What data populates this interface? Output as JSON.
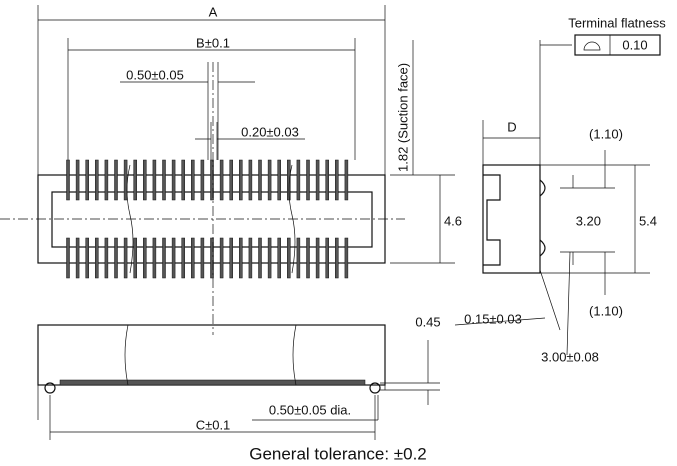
{
  "dimensions": {
    "a": "A",
    "b": "B±0.1",
    "pitch": "0.50±0.05",
    "pin_width": "0.20±0.03",
    "suction": "1.82 (Suction face)",
    "width": "4.6",
    "d": "D",
    "upper_gap": "(1.10)",
    "inner": "3.20",
    "outer": "5.4",
    "lower_gap": "(1.10)",
    "thickness": "0.15±0.03",
    "height": "3.00±0.08",
    "standoff": "0.45",
    "boss": "0.50±0.05 dia.",
    "c": "C±0.1"
  },
  "terminal_flatness": {
    "title": "Terminal flatness",
    "value": "0.10"
  },
  "general_tolerance": "General tolerance: ±0.2"
}
